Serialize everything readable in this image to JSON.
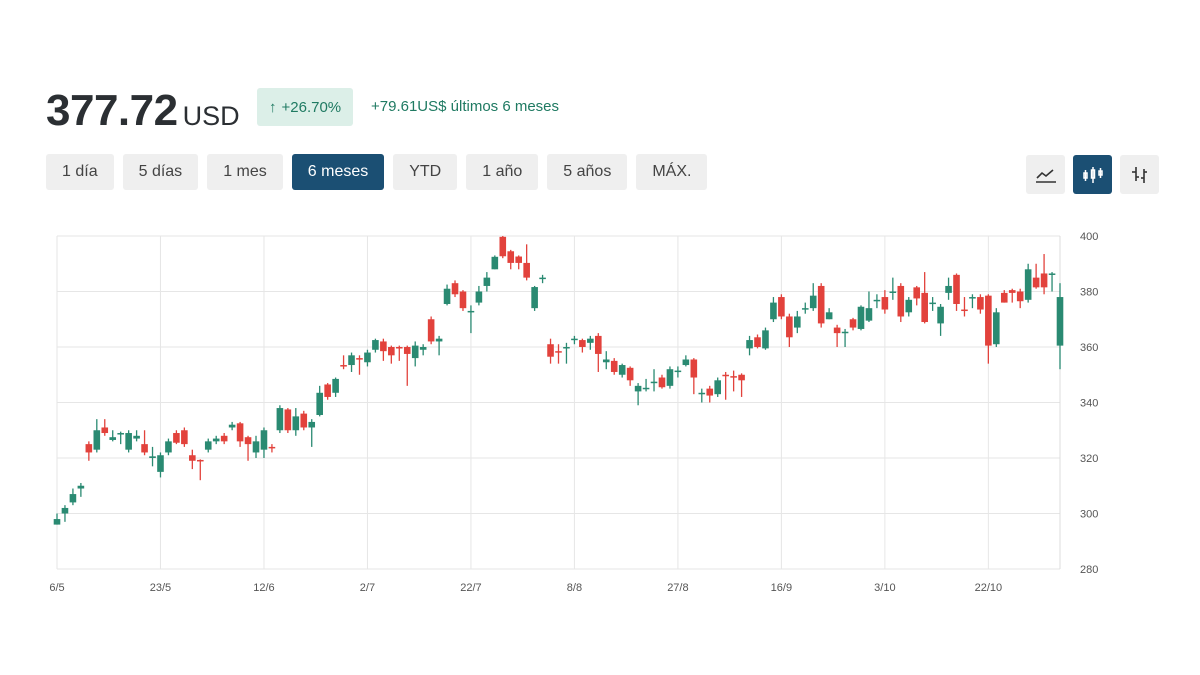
{
  "header": {
    "price": "377.72",
    "currency": "USD",
    "change_pct": "+26.70%",
    "change_text": "+79.61US$ últimos 6 meses"
  },
  "ranges": [
    {
      "label": "1 día",
      "active": false
    },
    {
      "label": "5 días",
      "active": false
    },
    {
      "label": "1 mes",
      "active": false
    },
    {
      "label": "6 meses",
      "active": true
    },
    {
      "label": "YTD",
      "active": false
    },
    {
      "label": "1 año",
      "active": false
    },
    {
      "label": "5 años",
      "active": false
    },
    {
      "label": "MÁX.",
      "active": false
    }
  ],
  "chart_types": [
    {
      "name": "line-chart-icon",
      "active": false
    },
    {
      "name": "candlestick-chart-icon",
      "active": true
    },
    {
      "name": "ohlc-chart-icon",
      "active": false
    }
  ],
  "colors": {
    "up": "#2a8a72",
    "down": "#e2423c",
    "accent": "#1b4f73",
    "grid": "#e6e6e6"
  },
  "chart_data": {
    "type": "candlestick",
    "ylim": [
      280,
      400
    ],
    "yticks": [
      280,
      300,
      320,
      340,
      360,
      380,
      400
    ],
    "xticks": [
      {
        "i": 0,
        "label": "6/5"
      },
      {
        "i": 13,
        "label": "23/5"
      },
      {
        "i": 26,
        "label": "12/6"
      },
      {
        "i": 39,
        "label": "2/7"
      },
      {
        "i": 52,
        "label": "22/7"
      },
      {
        "i": 65,
        "label": "8/8"
      },
      {
        "i": 78,
        "label": "27/8"
      },
      {
        "i": 91,
        "label": "16/9"
      },
      {
        "i": 104,
        "label": "3/10"
      },
      {
        "i": 117,
        "label": "22/10"
      }
    ],
    "grid": true,
    "ohlc": [
      [
        296,
        300,
        296,
        298
      ],
      [
        300,
        303,
        297,
        302
      ],
      [
        304,
        309,
        303,
        307
      ],
      [
        309,
        311,
        306,
        310
      ],
      [
        325,
        326,
        319,
        322
      ],
      [
        323,
        334,
        322,
        330
      ],
      [
        331,
        334,
        328,
        329
      ],
      [
        326.5,
        330,
        326,
        327.5
      ],
      [
        328.6,
        329.5,
        325,
        329
      ],
      [
        323,
        330,
        322,
        329
      ],
      [
        327,
        330,
        326,
        328
      ],
      [
        325,
        330,
        321,
        322
      ],
      [
        320,
        324,
        317,
        320.6
      ],
      [
        315,
        322,
        313,
        321
      ],
      [
        322,
        327,
        321,
        326
      ],
      [
        329,
        330,
        325,
        325.5
      ],
      [
        330,
        331,
        324,
        325
      ],
      [
        321,
        323,
        316,
        319
      ],
      [
        319.3,
        319.5,
        312,
        319
      ],
      [
        323,
        327,
        322,
        326
      ],
      [
        326,
        328,
        325,
        327
      ],
      [
        328,
        329,
        325,
        326
      ],
      [
        331,
        333,
        330,
        332
      ],
      [
        332.5,
        333,
        324,
        326
      ],
      [
        327.5,
        328,
        319,
        325
      ],
      [
        322,
        328,
        320,
        326
      ],
      [
        323,
        331,
        320,
        330
      ],
      [
        324,
        325,
        322,
        323.5
      ],
      [
        330,
        339,
        329,
        338
      ],
      [
        337.5,
        338,
        329,
        330
      ],
      [
        330,
        338,
        328,
        335
      ],
      [
        336,
        337,
        330,
        331
      ],
      [
        331,
        334,
        324,
        333
      ],
      [
        335.5,
        346,
        335,
        343.5
      ],
      [
        346.5,
        347,
        341,
        342
      ],
      [
        343.5,
        349,
        342,
        348.5
      ],
      [
        353.5,
        357,
        352,
        353
      ],
      [
        353.5,
        358,
        351,
        357
      ],
      [
        356,
        357,
        350,
        355.5
      ],
      [
        354.5,
        359,
        353,
        358
      ],
      [
        359,
        363,
        358,
        362.5
      ],
      [
        362,
        363,
        355,
        358.5
      ],
      [
        360,
        360.5,
        354,
        357
      ],
      [
        360,
        360.5,
        355,
        359.5
      ],
      [
        360,
        360.5,
        346,
        357.5
      ],
      [
        356,
        362,
        353,
        360.5
      ],
      [
        359,
        361,
        357,
        360
      ],
      [
        370,
        371,
        361,
        362
      ],
      [
        362,
        364,
        357,
        363
      ],
      [
        375.5,
        382.5,
        375,
        381
      ],
      [
        383,
        384,
        378,
        379
      ],
      [
        380,
        380.5,
        373,
        374
      ],
      [
        372.5,
        375,
        365,
        373
      ],
      [
        376,
        382,
        375,
        380
      ],
      [
        382,
        387,
        380,
        385
      ],
      [
        388,
        393,
        388,
        392.5
      ],
      [
        399.7,
        400,
        392,
        392.7
      ],
      [
        394.5,
        395,
        388,
        390.3
      ],
      [
        392.6,
        393,
        388,
        390.3
      ],
      [
        390.3,
        397,
        384,
        385
      ],
      [
        374,
        382,
        373,
        381.6
      ],
      [
        384.5,
        386,
        383,
        385
      ],
      [
        361,
        363,
        354,
        356.5
      ],
      [
        358.5,
        361,
        354,
        358
      ],
      [
        359.5,
        361.5,
        354,
        360
      ],
      [
        362.5,
        364,
        361,
        363
      ],
      [
        362.5,
        363,
        358,
        360
      ],
      [
        361.5,
        364,
        359,
        363
      ],
      [
        364,
        365,
        351,
        357.5
      ],
      [
        354.5,
        358.5,
        352,
        355.5
      ],
      [
        355,
        356,
        350,
        351
      ],
      [
        350,
        354,
        349,
        353.5
      ],
      [
        352.5,
        353,
        346,
        348
      ],
      [
        344,
        347,
        339,
        346
      ],
      [
        345,
        348.5,
        344,
        345.3
      ],
      [
        347,
        352,
        344,
        347.5
      ],
      [
        349,
        350,
        345,
        345.5
      ],
      [
        346,
        353,
        345,
        352
      ],
      [
        351,
        353,
        349,
        351.5
      ],
      [
        353.5,
        357,
        353,
        355.5
      ],
      [
        355.5,
        356,
        343,
        349
      ],
      [
        343,
        345,
        340,
        343.5
      ],
      [
        345,
        346,
        340,
        342.5
      ],
      [
        343,
        349,
        342,
        348
      ],
      [
        350,
        351,
        341,
        349.5
      ],
      [
        349.5,
        351.5,
        344,
        349
      ],
      [
        350,
        350.5,
        342,
        348
      ],
      [
        359.5,
        364,
        357,
        362.5
      ],
      [
        363.5,
        364.5,
        359.5,
        360
      ],
      [
        359.5,
        367,
        359,
        366
      ],
      [
        370,
        378,
        369,
        376
      ],
      [
        378,
        379,
        370,
        371
      ],
      [
        371,
        372,
        360,
        363.5
      ],
      [
        367,
        373,
        365,
        371
      ],
      [
        373.5,
        376,
        372,
        374
      ],
      [
        374,
        383,
        373,
        378.5
      ],
      [
        382,
        383,
        367,
        368.5
      ],
      [
        370,
        374,
        370,
        372.5
      ],
      [
        367,
        368,
        360,
        365
      ],
      [
        365,
        366.5,
        360,
        365.5
      ],
      [
        370,
        370.5,
        366,
        367
      ],
      [
        366.5,
        375,
        366,
        374.5
      ],
      [
        369.5,
        380,
        369,
        374
      ],
      [
        376.5,
        379,
        374,
        377
      ],
      [
        378,
        380.5,
        372,
        373.5
      ],
      [
        379.5,
        385,
        377,
        380
      ],
      [
        382,
        383,
        369,
        371
      ],
      [
        372.5,
        378,
        371,
        377
      ],
      [
        381.5,
        382,
        375,
        377.5
      ],
      [
        379.5,
        387,
        368.5,
        369
      ],
      [
        375.5,
        378,
        373,
        376
      ],
      [
        368.5,
        375.5,
        364,
        374.5
      ],
      [
        379.5,
        385,
        377,
        382
      ],
      [
        386,
        386.5,
        373,
        375.5
      ],
      [
        373.5,
        378,
        371,
        373
      ],
      [
        377.5,
        379,
        374,
        378
      ],
      [
        378,
        379,
        372,
        373.5
      ],
      [
        378.5,
        379,
        354,
        360.5
      ],
      [
        361,
        374,
        360,
        372.5
      ],
      [
        379.5,
        380.5,
        376,
        376
      ],
      [
        380.5,
        381,
        376,
        379.5
      ],
      [
        380,
        381,
        374,
        376.5
      ],
      [
        377,
        390,
        376,
        388
      ],
      [
        385,
        390,
        381,
        381.5
      ],
      [
        386.5,
        393.5,
        379,
        381.5
      ],
      [
        386,
        387,
        380,
        386.5
      ],
      [
        360.5,
        383,
        352,
        378
      ]
    ]
  }
}
